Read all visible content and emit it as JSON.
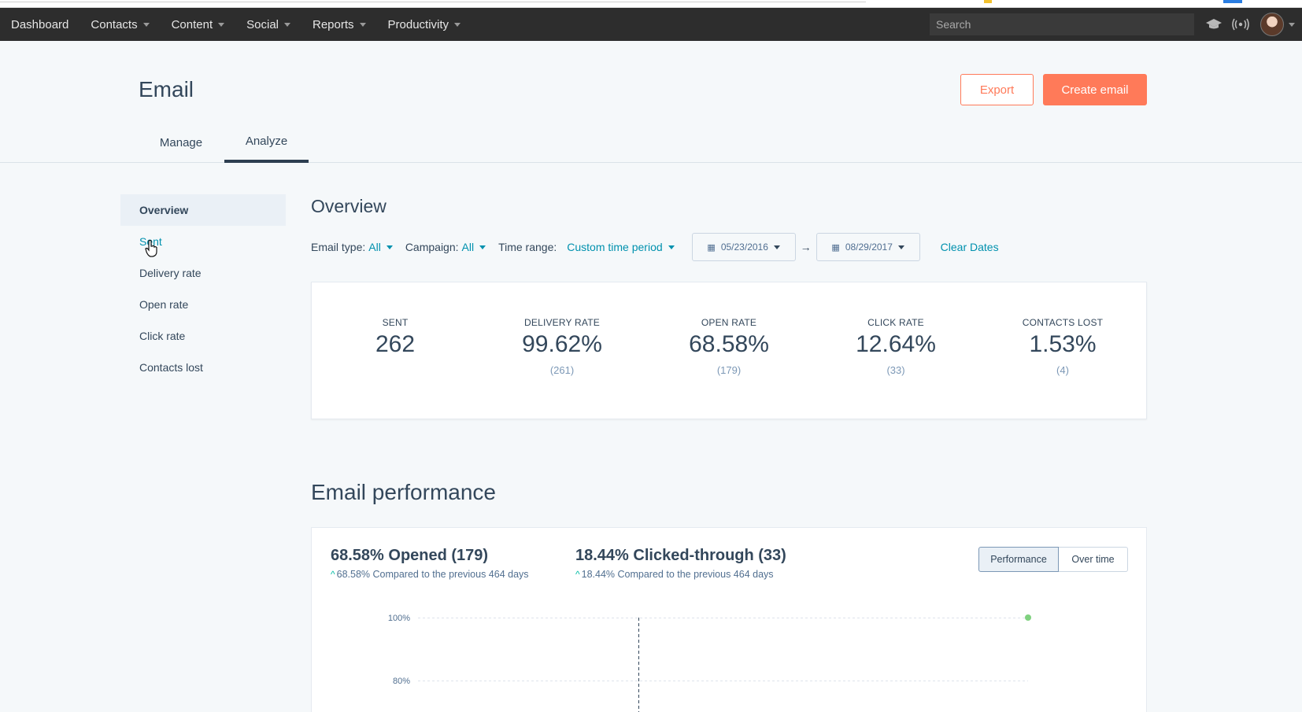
{
  "nav": {
    "items": [
      {
        "label": "Dashboard",
        "dropdown": false
      },
      {
        "label": "Contacts",
        "dropdown": true
      },
      {
        "label": "Content",
        "dropdown": true
      },
      {
        "label": "Social",
        "dropdown": true
      },
      {
        "label": "Reports",
        "dropdown": true
      },
      {
        "label": "Productivity",
        "dropdown": true
      }
    ],
    "search_placeholder": "Search",
    "icons": [
      "academy-icon",
      "notifications-icon",
      "avatar"
    ]
  },
  "header": {
    "title": "Email",
    "export_label": "Export",
    "create_label": "Create email",
    "tabs": [
      {
        "label": "Manage",
        "active": false
      },
      {
        "label": "Analyze",
        "active": true
      }
    ]
  },
  "sidebar": {
    "items": [
      {
        "label": "Overview",
        "active": true
      },
      {
        "label": "Sent",
        "active": false
      },
      {
        "label": "Delivery rate",
        "active": false
      },
      {
        "label": "Open rate",
        "active": false
      },
      {
        "label": "Click rate",
        "active": false
      },
      {
        "label": "Contacts lost",
        "active": false
      }
    ]
  },
  "overview": {
    "title": "Overview",
    "filters": {
      "email_type_label": "Email type:",
      "email_type_value": "All",
      "campaign_label": "Campaign:",
      "campaign_value": "All",
      "time_range_label": "Time range:",
      "time_range_value": "Custom time period",
      "start_date": "05/23/2016",
      "end_date": "08/29/2017",
      "clear_label": "Clear Dates"
    },
    "stats": [
      {
        "label": "SENT",
        "value": "262",
        "sub": ""
      },
      {
        "label": "DELIVERY RATE",
        "value": "99.62%",
        "sub": "(261)"
      },
      {
        "label": "OPEN RATE",
        "value": "68.58%",
        "sub": "(179)"
      },
      {
        "label": "CLICK RATE",
        "value": "12.64%",
        "sub": "(33)"
      },
      {
        "label": "CONTACTS LOST",
        "value": "1.53%",
        "sub": "(4)"
      }
    ]
  },
  "performance": {
    "title": "Email performance",
    "metric1_main": "68.58% Opened (179)",
    "metric1_sub": "68.58% Compared to the previous 464 days",
    "metric2_main": "18.44% Clicked-through (33)",
    "metric2_sub": "18.44% Compared to the previous 464 days",
    "toggle_performance": "Performance",
    "toggle_over_time": "Over time"
  },
  "chart_data": {
    "type": "line",
    "y_ticks": [
      "100%",
      "80%"
    ],
    "ylim": [
      0,
      100
    ],
    "points": [
      {
        "x": 1,
        "y": 100
      }
    ],
    "marker_color": "#7fd17f",
    "grid": true
  }
}
